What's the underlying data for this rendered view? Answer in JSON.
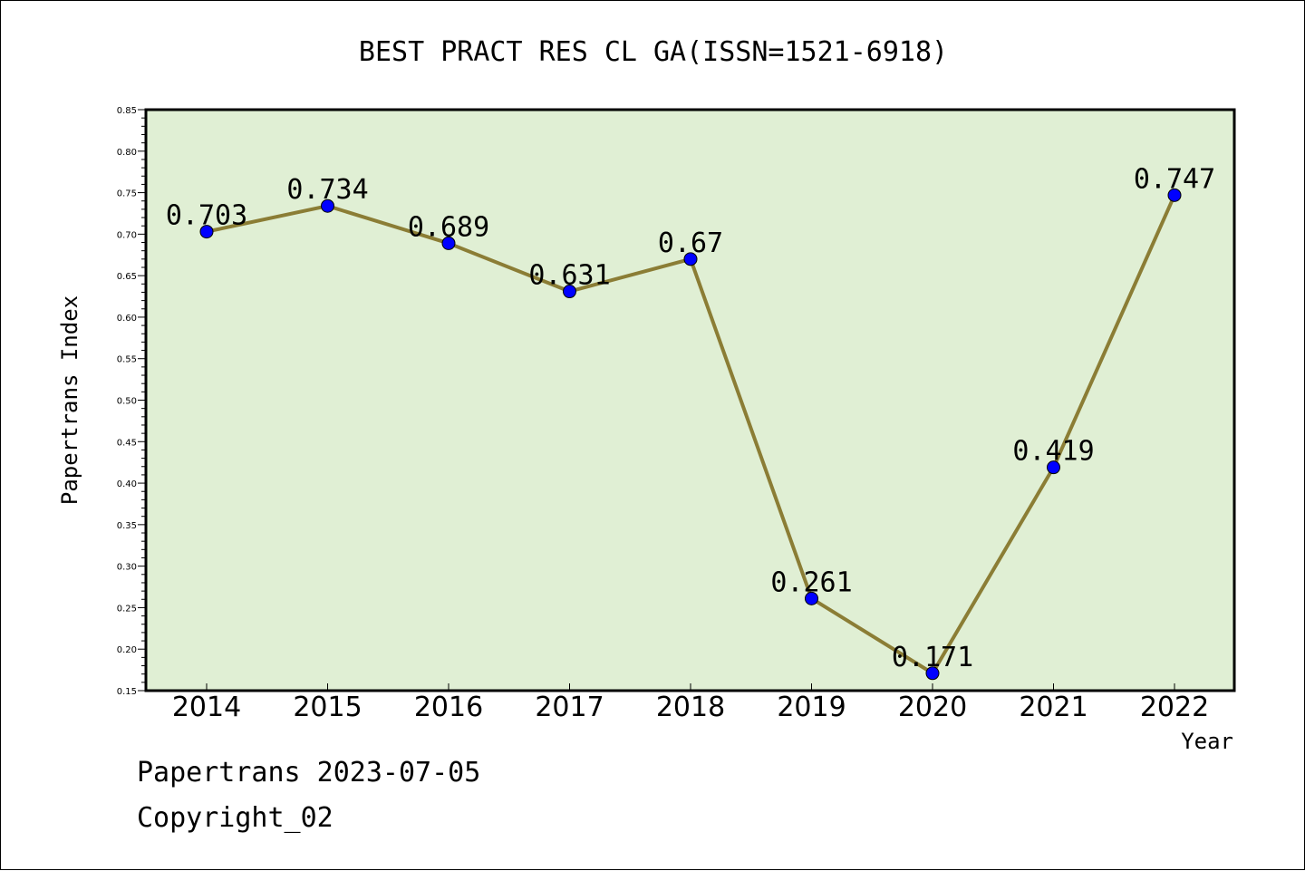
{
  "chart_data": {
    "type": "line",
    "title": "BEST PRACT RES CL GA(ISSN=1521-6918)",
    "xlabel": "Year",
    "ylabel": "Papertrans Index",
    "categories": [
      "2014",
      "2015",
      "2016",
      "2017",
      "2018",
      "2019",
      "2020",
      "2021",
      "2022"
    ],
    "values": [
      0.703,
      0.734,
      0.689,
      0.631,
      0.67,
      0.261,
      0.171,
      0.419,
      0.747
    ],
    "data_labels": [
      "0.703",
      "0.734",
      "0.689",
      "0.631",
      "0.67",
      "0.261",
      "0.171",
      "0.419",
      "0.747"
    ],
    "ylim": [
      0.15,
      0.85
    ],
    "yticks": [
      "0.15",
      "0.20",
      "0.25",
      "0.30",
      "0.35",
      "0.40",
      "0.45",
      "0.50",
      "0.55",
      "0.60",
      "0.65",
      "0.70",
      "0.75",
      "0.80",
      "0.85"
    ],
    "grid": false,
    "legend": false,
    "colors": {
      "plot_background": "#e0efd4",
      "line": "#8b7d35",
      "marker": "#0000ff",
      "axes": "#000000"
    }
  },
  "footer": {
    "line1": "Papertrans 2023-07-05",
    "line2": "Copyright_02"
  }
}
